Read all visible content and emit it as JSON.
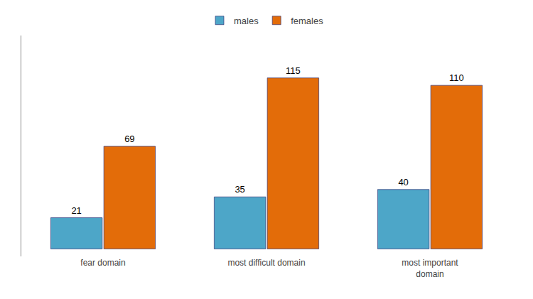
{
  "chart_data": {
    "type": "bar",
    "categories": [
      "fear domain",
      "most difficult domain",
      "most important\ndomain"
    ],
    "series": [
      {
        "name": "males",
        "color": "#4DA6C8",
        "values": [
          21,
          35,
          40
        ]
      },
      {
        "name": "females",
        "color": "#E36C09",
        "values": [
          69,
          115,
          110
        ]
      }
    ],
    "ylim": [
      -5,
      143.5
    ],
    "grid": false,
    "legend": "top",
    "data_labels": true,
    "tick_labels": "x"
  }
}
